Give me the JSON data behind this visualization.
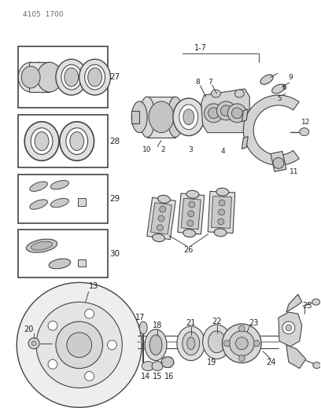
{
  "title": "4105  1700",
  "bg_color": "#ffffff",
  "line_color": "#444444",
  "text_color": "#222222",
  "fig_width": 4.08,
  "fig_height": 5.33,
  "dpi": 100
}
